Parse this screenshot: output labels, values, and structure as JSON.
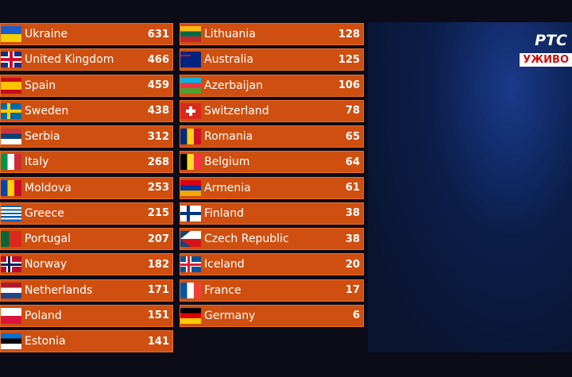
{
  "scoreboard": {
    "left": [
      {
        "country": "Ukraine",
        "points": "631",
        "flag": "ukraine-flag"
      },
      {
        "country": "United Kingdom",
        "points": "466",
        "flag": "uk-flag"
      },
      {
        "country": "Spain",
        "points": "459",
        "flag": "spain-flag"
      },
      {
        "country": "Sweden",
        "points": "438",
        "flag": "sweden-flag"
      },
      {
        "country": "Serbia",
        "points": "312",
        "flag": "serbia-flag"
      },
      {
        "country": "Italy",
        "points": "268",
        "flag": "italy-flag"
      },
      {
        "country": "Moldova",
        "points": "253",
        "flag": "moldova-flag"
      },
      {
        "country": "Greece",
        "points": "215",
        "flag": "greece-flag"
      },
      {
        "country": "Portugal",
        "points": "207",
        "flag": "portugal-flag"
      },
      {
        "country": "Norway",
        "points": "182",
        "flag": "norway-flag"
      },
      {
        "country": "Netherlands",
        "points": "171",
        "flag": "netherlands-flag"
      },
      {
        "country": "Poland",
        "points": "151",
        "flag": "poland-flag"
      },
      {
        "country": "Estonia",
        "points": "141",
        "flag": "estonia-flag"
      }
    ],
    "right": [
      {
        "country": "Lithuania",
        "points": "128",
        "flag": "lithuania-flag"
      },
      {
        "country": "Australia",
        "points": "125",
        "flag": "australia-flag"
      },
      {
        "country": "Azerbaijan",
        "points": "106",
        "flag": "azerbaijan-flag"
      },
      {
        "country": "Switzerland",
        "points": "78",
        "flag": "switzerland-flag"
      },
      {
        "country": "Romania",
        "points": "65",
        "flag": "romania-flag"
      },
      {
        "country": "Belgium",
        "points": "64",
        "flag": "belgium-flag"
      },
      {
        "country": "Armenia",
        "points": "61",
        "flag": "armenia-flag"
      },
      {
        "country": "Finland",
        "points": "38",
        "flag": "finland-flag"
      },
      {
        "country": "Czech Republic",
        "points": "38",
        "flag": "czech-flag"
      },
      {
        "country": "Iceland",
        "points": "20",
        "flag": "iceland-flag"
      },
      {
        "country": "France",
        "points": "17",
        "flag": "france-flag"
      },
      {
        "country": "Germany",
        "points": "6",
        "flag": "germany-flag"
      }
    ]
  },
  "broadcast": {
    "logo": "РТС",
    "live_label": "УЖИВО"
  },
  "colors": {
    "row": "#cf4f10",
    "background": "#0c0b18"
  }
}
